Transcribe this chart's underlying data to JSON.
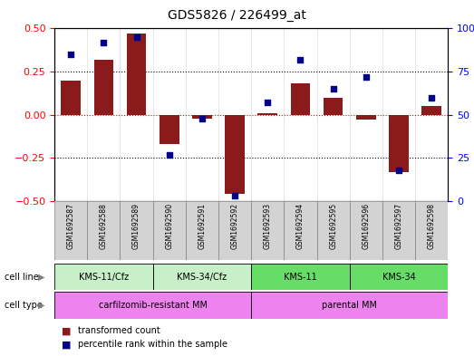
{
  "title": "GDS5826 / 226499_at",
  "samples": [
    "GSM1692587",
    "GSM1692588",
    "GSM1692589",
    "GSM1692590",
    "GSM1692591",
    "GSM1692592",
    "GSM1692593",
    "GSM1692594",
    "GSM1692595",
    "GSM1692596",
    "GSM1692597",
    "GSM1692598"
  ],
  "transformed_count": [
    0.2,
    0.32,
    0.47,
    -0.17,
    -0.02,
    -0.46,
    0.01,
    0.18,
    0.1,
    -0.03,
    -0.33,
    0.05
  ],
  "percentile_rank": [
    85,
    92,
    95,
    27,
    48,
    3,
    57,
    82,
    65,
    72,
    18,
    60
  ],
  "cell_lines": [
    {
      "label": "KMS-11/Cfz",
      "start": 0,
      "end": 3,
      "color": "#c8f0c8"
    },
    {
      "label": "KMS-34/Cfz",
      "start": 3,
      "end": 6,
      "color": "#c8f0c8"
    },
    {
      "label": "KMS-11",
      "start": 6,
      "end": 9,
      "color": "#66dd66"
    },
    {
      "label": "KMS-34",
      "start": 9,
      "end": 12,
      "color": "#66dd66"
    }
  ],
  "cell_types": [
    {
      "label": "carfilzomib-resistant MM",
      "start": 0,
      "end": 6,
      "color": "#ee82ee"
    },
    {
      "label": "parental MM",
      "start": 6,
      "end": 12,
      "color": "#ee82ee"
    }
  ],
  "bar_color": "#8b1a1a",
  "dot_color": "#00008b",
  "ylim_left": [
    -0.5,
    0.5
  ],
  "ylim_right": [
    0,
    100
  ],
  "yticks_left": [
    -0.5,
    -0.25,
    0,
    0.25,
    0.5
  ],
  "yticks_right": [
    0,
    25,
    50,
    75,
    100
  ],
  "legend_items": [
    {
      "label": "transformed count",
      "color": "#8b1a1a"
    },
    {
      "label": "percentile rank within the sample",
      "color": "#00008b"
    }
  ]
}
